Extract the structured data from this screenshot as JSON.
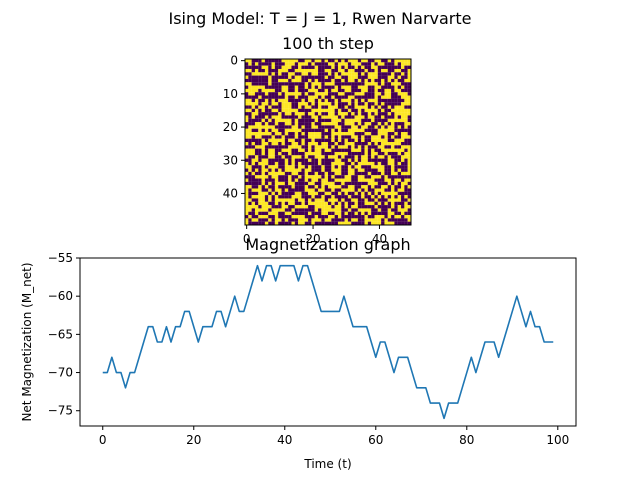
{
  "figure": {
    "suptitle": "Ising Model: T = J = 1, Rwen Narvarte"
  },
  "colors": {
    "spin_up": "#fde725",
    "spin_down": "#440154",
    "line": "#1f77b4",
    "axis": "#000000"
  },
  "chart_data": [
    {
      "type": "heatmap",
      "title": "100 th step",
      "grid_size": 50,
      "values_legend": {
        "1": "spin up (yellow)",
        "-1": "spin down (purple)"
      },
      "x_ticks": [
        0,
        20,
        40
      ],
      "y_ticks": [
        0,
        10,
        20,
        30,
        40
      ],
      "xlim": [
        -0.5,
        49.5
      ],
      "ylim": [
        49.5,
        -0.5
      ],
      "magnetization": -66
    },
    {
      "type": "line",
      "title": "Magnetization graph",
      "xlabel": "Time (t)",
      "ylabel": "Net Magnetization (M_net)",
      "xlim": [
        -5,
        104
      ],
      "ylim": [
        -77,
        -55
      ],
      "x_ticks": [
        0,
        20,
        40,
        60,
        80,
        100
      ],
      "y_ticks": [
        -55,
        -60,
        -65,
        -70,
        -75
      ],
      "x_start": 0,
      "series": [
        {
          "values": [
            -70,
            -70,
            -68,
            -70,
            -70,
            -72,
            -70,
            -70,
            -68,
            -66,
            -64,
            -64,
            -66,
            -66,
            -64,
            -66,
            -64,
            -64,
            -62,
            -62,
            -64,
            -66,
            -64,
            -64,
            -64,
            -62,
            -62,
            -64,
            -62,
            -60,
            -62,
            -62,
            -60,
            -58,
            -56,
            -58,
            -56,
            -56,
            -58,
            -56,
            -56,
            -56,
            -56,
            -58,
            -56,
            -56,
            -58,
            -60,
            -62,
            -62,
            -62,
            -62,
            -62,
            -60,
            -62,
            -64,
            -64,
            -64,
            -64,
            -66,
            -68,
            -66,
            -66,
            -68,
            -70,
            -68,
            -68,
            -68,
            -70,
            -72,
            -72,
            -72,
            -74,
            -74,
            -74,
            -76,
            -74,
            -74,
            -74,
            -72,
            -70,
            -68,
            -70,
            -68,
            -66,
            -66,
            -66,
            -68,
            -66,
            -64,
            -62,
            -60,
            -62,
            -64,
            -62,
            -64,
            -64,
            -66,
            -66,
            -66
          ]
        }
      ]
    }
  ]
}
